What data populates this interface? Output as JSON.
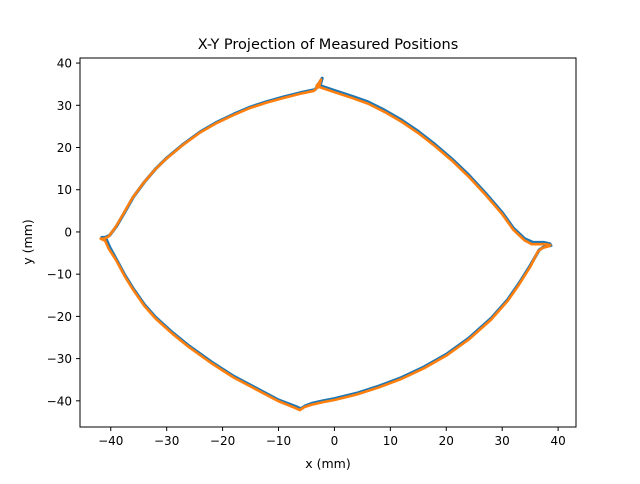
{
  "chart_data": {
    "type": "line",
    "title": "X-Y Projection of Measured Positions",
    "xlabel": "x (mm)",
    "ylabel": "y (mm)",
    "xlim": [
      -45.5,
      43.2
    ],
    "ylim": [
      -46.2,
      41.2
    ],
    "xticks": [
      -40,
      -30,
      -20,
      -10,
      0,
      10,
      20,
      30,
      40
    ],
    "yticks": [
      -40,
      -30,
      -20,
      -10,
      0,
      10,
      20,
      30,
      40
    ],
    "grid": false,
    "legend": "none",
    "series": [
      {
        "color": "#1f77b4",
        "x": [
          -3.0,
          -2.0,
          0,
          3,
          6,
          9,
          12,
          15,
          18,
          21,
          24,
          27,
          30,
          32,
          34,
          35.5,
          36.8,
          37.5,
          38.5,
          38.7,
          37.5,
          36.6,
          35,
          33,
          31,
          28,
          24,
          20,
          16,
          12,
          8,
          4,
          0,
          -2,
          -4,
          -5.2,
          -6.0,
          -7.0,
          -10,
          -14,
          -18,
          -22,
          -26,
          -29,
          -32,
          -34,
          -36,
          -37.5,
          -39,
          -40.2,
          -40.8,
          -41.6,
          -41.0,
          -40.2,
          -39,
          -37.5,
          -36,
          -34,
          -32,
          -30,
          -27,
          -24,
          -21,
          -18,
          -15,
          -12,
          -9,
          -6,
          -3.5,
          -2.5,
          -2.2,
          -2.6,
          -3.0
        ],
        "y": [
          34.8,
          34.4,
          33.5,
          32.2,
          30.8,
          28.8,
          26.5,
          23.8,
          20.7,
          17.3,
          13.5,
          9.2,
          4.6,
          0.9,
          -1.6,
          -2.5,
          -2.5,
          -2.5,
          -2.8,
          -3.2,
          -3.5,
          -4.3,
          -8.0,
          -12.2,
          -16.0,
          -20.5,
          -25.2,
          -29.0,
          -32.0,
          -34.5,
          -36.5,
          -38.2,
          -39.5,
          -40.0,
          -40.6,
          -41.2,
          -41.9,
          -41.3,
          -39.8,
          -37.0,
          -34.2,
          -30.8,
          -27.0,
          -23.8,
          -20.2,
          -17.2,
          -13.4,
          -10.2,
          -6.5,
          -3.6,
          -1.8,
          -1.3,
          -1.3,
          -0.8,
          1.3,
          4.7,
          8.2,
          11.8,
          14.9,
          17.5,
          20.8,
          23.7,
          26.0,
          27.9,
          29.6,
          30.9,
          32.0,
          33.0,
          33.7,
          35.0,
          36.4,
          35.5,
          34.8
        ]
      },
      {
        "color": "#ff7f0e",
        "x": [
          -3.2,
          -2.2,
          0,
          3,
          6,
          9,
          12,
          15,
          18,
          21,
          24,
          27,
          30,
          32,
          34,
          35.3,
          36.6,
          37.6,
          38.6,
          38.3,
          37.2,
          36.4,
          35,
          33,
          31,
          28,
          24,
          20,
          16,
          12,
          8,
          4,
          0,
          -2,
          -4,
          -5.4,
          -6.2,
          -7.2,
          -10,
          -14,
          -18,
          -22,
          -26,
          -29,
          -32,
          -34,
          -36,
          -37.5,
          -39,
          -40.4,
          -41.0,
          -41.8,
          -41.2,
          -40.4,
          -39.2,
          -37.7,
          -36.2,
          -34.2,
          -32.2,
          -30.2,
          -27.2,
          -24.2,
          -21.2,
          -18.2,
          -15.2,
          -12.2,
          -9.2,
          -6.2,
          -3.7,
          -2.7,
          -2.4,
          -2.8,
          -3.2
        ],
        "y": [
          34.6,
          34.1,
          33.1,
          31.8,
          30.4,
          28.4,
          26.1,
          23.4,
          20.3,
          16.9,
          13.1,
          8.8,
          4.2,
          0.5,
          -2.0,
          -2.9,
          -2.9,
          -2.9,
          -3.1,
          -3.4,
          -3.8,
          -4.6,
          -8.3,
          -12.5,
          -16.3,
          -20.8,
          -25.5,
          -29.3,
          -32.3,
          -34.8,
          -36.8,
          -38.5,
          -39.8,
          -40.3,
          -40.9,
          -41.5,
          -42.2,
          -41.6,
          -40.1,
          -37.3,
          -34.5,
          -31.1,
          -27.3,
          -24.1,
          -20.5,
          -17.5,
          -13.7,
          -10.5,
          -6.8,
          -3.9,
          -2.1,
          -1.6,
          -1.6,
          -1.1,
          1.0,
          4.4,
          7.9,
          11.5,
          14.6,
          17.2,
          20.5,
          23.4,
          25.7,
          27.6,
          29.3,
          30.6,
          31.7,
          32.7,
          33.4,
          34.7,
          36.1,
          35.2,
          34.6
        ]
      }
    ]
  }
}
